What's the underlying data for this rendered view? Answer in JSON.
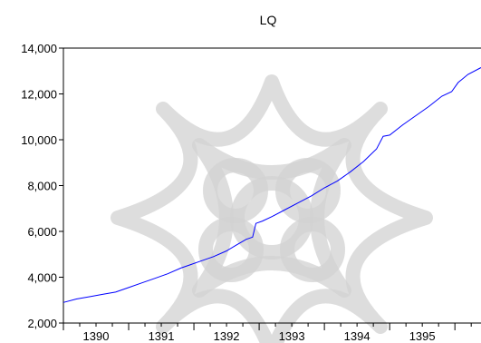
{
  "chart_data": {
    "type": "line",
    "title": "LQ",
    "xlabel": "",
    "ylabel": "",
    "x_tick_labels": [
      "1390",
      "1391",
      "1392",
      "1393",
      "1394",
      "1395"
    ],
    "y_tick_labels": [
      "2,000",
      "4,000",
      "6,000",
      "8,000",
      "10,000",
      "12,000",
      "14,000"
    ],
    "y_ticks": [
      2000,
      4000,
      6000,
      8000,
      10000,
      12000,
      14000
    ],
    "ylim": [
      2000,
      14000
    ],
    "xlim": [
      1389.5,
      1395.9
    ],
    "grid": false,
    "legend": "none",
    "series": [
      {
        "color": "#0000ff",
        "x": [
          1389.5,
          1389.7,
          1389.9,
          1390.1,
          1390.3,
          1390.5,
          1390.7,
          1390.9,
          1391.1,
          1391.3,
          1391.45,
          1391.6,
          1391.8,
          1392.0,
          1392.15,
          1392.3,
          1392.4,
          1392.45,
          1392.55,
          1392.7,
          1392.9,
          1393.1,
          1393.3,
          1393.5,
          1393.7,
          1393.9,
          1394.1,
          1394.3,
          1394.4,
          1394.5,
          1394.7,
          1394.9,
          1395.1,
          1395.3,
          1395.45,
          1395.55,
          1395.7,
          1395.9
        ],
        "values": [
          2900,
          3050,
          3150,
          3250,
          3350,
          3550,
          3750,
          3950,
          4150,
          4400,
          4550,
          4700,
          4900,
          5150,
          5400,
          5650,
          5750,
          6350,
          6450,
          6650,
          6950,
          7250,
          7550,
          7900,
          8200,
          8600,
          9050,
          9600,
          10150,
          10200,
          10650,
          11050,
          11450,
          11900,
          12100,
          12500,
          12850,
          13150
        ]
      }
    ]
  },
  "colors": {
    "line": "#0000ff",
    "axis": "#000000",
    "watermark": "#d2d2d2"
  }
}
